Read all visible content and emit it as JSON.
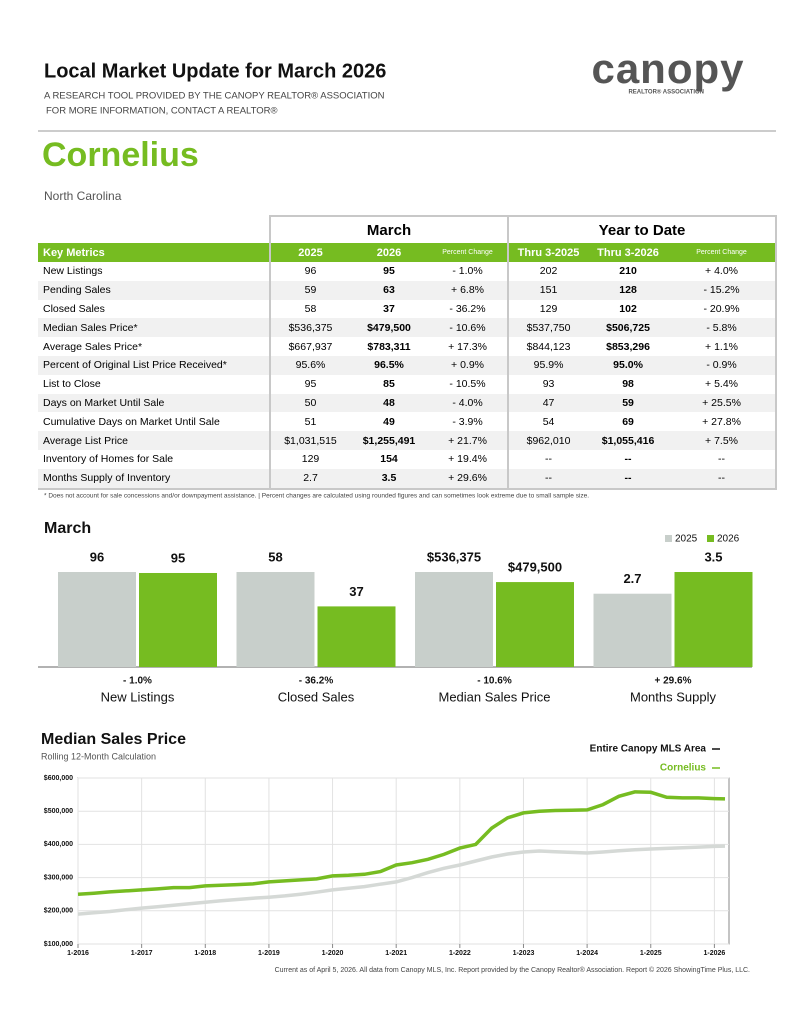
{
  "header": {
    "title": "Local Market Update for March 2026",
    "subtitle_1": "A RESEARCH TOOL PROVIDED BY THE CANOPY REALTOR® ASSOCIATION",
    "subtitle_2": "FOR MORE INFORMATION, CONTACT A REALTOR®",
    "logo": "canopy",
    "logo_sub": "REALTOR® ASSOCIATION"
  },
  "location": {
    "name": "Cornelius",
    "state": "North Carolina"
  },
  "table": {
    "groups": [
      "March",
      "Year to Date"
    ],
    "columns": [
      "Key Metrics",
      "2025",
      "2026",
      "Percent Change",
      "Thru 3-2025",
      "Thru 3-2026",
      "Percent Change"
    ],
    "rows": [
      [
        "New Listings",
        "96",
        "95",
        "- 1.0%",
        "202",
        "210",
        "+ 4.0%"
      ],
      [
        "Pending Sales",
        "59",
        "63",
        "+ 6.8%",
        "151",
        "128",
        "- 15.2%"
      ],
      [
        "Closed Sales",
        "58",
        "37",
        "- 36.2%",
        "129",
        "102",
        "- 20.9%"
      ],
      [
        "Median Sales Price*",
        "$536,375",
        "$479,500",
        "- 10.6%",
        "$537,750",
        "$506,725",
        "- 5.8%"
      ],
      [
        "Average Sales Price*",
        "$667,937",
        "$783,311",
        "+ 17.3%",
        "$844,123",
        "$853,296",
        "+ 1.1%"
      ],
      [
        "Percent of Original List Price Received*",
        "95.6%",
        "96.5%",
        "+ 0.9%",
        "95.9%",
        "95.0%",
        "- 0.9%"
      ],
      [
        "List to Close",
        "95",
        "85",
        "- 10.5%",
        "93",
        "98",
        "+ 5.4%"
      ],
      [
        "Days on Market Until Sale",
        "50",
        "48",
        "- 4.0%",
        "47",
        "59",
        "+ 25.5%"
      ],
      [
        "Cumulative Days on Market Until Sale",
        "51",
        "49",
        "- 3.9%",
        "54",
        "69",
        "+ 27.8%"
      ],
      [
        "Average List Price",
        "$1,031,515",
        "$1,255,491",
        "+ 21.7%",
        "$962,010",
        "$1,055,416",
        "+ 7.5%"
      ],
      [
        "Inventory of Homes for Sale",
        "129",
        "154",
        "+ 19.4%",
        "--",
        "--",
        "--"
      ],
      [
        "Months Supply of Inventory",
        "2.7",
        "3.5",
        "+ 29.6%",
        "--",
        "--",
        "--"
      ]
    ],
    "footnote": "* Does not account for sale concessions and/or downpayment assistance.  |  Percent changes are calculated using rounded figures and can sometimes look extreme due to small sample size."
  },
  "chart_data": [
    {
      "type": "bar",
      "title": "March",
      "categories": [
        "New Listings",
        "Closed Sales",
        "Median Sales Price",
        "Months Supply"
      ],
      "changes": [
        "- 1.0%",
        "- 36.2%",
        "- 10.6%",
        "+ 29.6%"
      ],
      "legend": "top-right",
      "series": [
        {
          "name": "2025",
          "color": "#c8cfcb",
          "values": [
            96,
            58,
            536375,
            2.7
          ],
          "value_labels": [
            "96",
            "58",
            "$536,375",
            "2.7"
          ]
        },
        {
          "name": "2026",
          "color": "#76bc21",
          "values": [
            95,
            37,
            479500,
            3.5
          ],
          "value_labels": [
            "95",
            "37",
            "$479,500",
            "3.5"
          ]
        }
      ]
    },
    {
      "type": "line",
      "title": "Median Sales Price",
      "subtitle": "Rolling 12-Month Calculation",
      "legend": "top-right",
      "grid": true,
      "x": [
        "2016-01",
        "2016-04",
        "2016-07",
        "2016-10",
        "2017-01",
        "2017-04",
        "2017-07",
        "2017-10",
        "2018-01",
        "2018-04",
        "2018-07",
        "2018-10",
        "2019-01",
        "2019-04",
        "2019-07",
        "2019-10",
        "2020-01",
        "2020-04",
        "2020-07",
        "2020-10",
        "2021-01",
        "2021-04",
        "2021-07",
        "2021-10",
        "2022-01",
        "2022-04",
        "2022-07",
        "2022-10",
        "2023-01",
        "2023-04",
        "2023-07",
        "2023-10",
        "2024-01",
        "2024-04",
        "2024-07",
        "2024-10",
        "2025-01",
        "2025-04",
        "2025-07",
        "2025-10",
        "2026-01",
        "2026-03"
      ],
      "xlim": [
        "2016-01",
        "2026-03"
      ],
      "xticks": [
        {
          "value": "2016-01",
          "label": "1-2016"
        },
        {
          "value": "2017-01",
          "label": "1-2017"
        },
        {
          "value": "2018-01",
          "label": "1-2018"
        },
        {
          "value": "2019-01",
          "label": "1-2019"
        },
        {
          "value": "2020-01",
          "label": "1-2020"
        },
        {
          "value": "2021-01",
          "label": "1-2021"
        },
        {
          "value": "2022-01",
          "label": "1-2022"
        },
        {
          "value": "2023-01",
          "label": "1-2023"
        },
        {
          "value": "2024-01",
          "label": "1-2024"
        },
        {
          "value": "2025-01",
          "label": "1-2025"
        },
        {
          "value": "2026-01",
          "label": "1-2026"
        }
      ],
      "ylim": [
        100000,
        600000
      ],
      "yticks": [
        {
          "value": 100000,
          "label": "$100,000"
        },
        {
          "value": 200000,
          "label": "$200,000"
        },
        {
          "value": 300000,
          "label": "$300,000"
        },
        {
          "value": 400000,
          "label": "$400,000"
        },
        {
          "value": 500000,
          "label": "$500,000"
        },
        {
          "value": 600000,
          "label": "$600,000"
        }
      ],
      "series": [
        {
          "name": "Entire Canopy MLS Area",
          "color": "#d5d9d6",
          "values": [
            190000,
            194000,
            198000,
            203000,
            208000,
            212000,
            217000,
            221000,
            226000,
            230000,
            234000,
            238000,
            241000,
            245000,
            250000,
            256000,
            263000,
            268000,
            273000,
            280000,
            287000,
            300000,
            315000,
            328000,
            338000,
            350000,
            362000,
            371000,
            377000,
            380000,
            378000,
            376000,
            374000,
            377000,
            381000,
            384000,
            386000,
            388000,
            390000,
            392000,
            394000,
            395000
          ]
        },
        {
          "name": "Cornelius",
          "color": "#76bc21",
          "values": [
            250000,
            253000,
            257000,
            260000,
            263000,
            266000,
            270000,
            270000,
            275000,
            277000,
            279000,
            281000,
            287000,
            290000,
            293000,
            296000,
            305000,
            307000,
            310000,
            318000,
            338000,
            345000,
            355000,
            370000,
            389000,
            400000,
            449000,
            480000,
            495000,
            500000,
            502000,
            503000,
            504000,
            520000,
            545000,
            558000,
            557000,
            542000,
            540000,
            540000,
            538000,
            537000
          ]
        }
      ]
    }
  ],
  "footer": "Current as of April 5, 2026. All data from Canopy MLS, Inc. Report provided by the Canopy Realtor® Association. Report © 2026 ShowingTime Plus, LLC."
}
